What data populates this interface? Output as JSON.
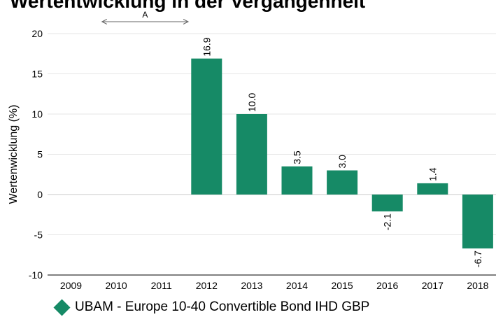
{
  "page": {
    "title": "Wertentwicklung in der Vergangenheit"
  },
  "chart_data": {
    "type": "bar",
    "title": "Wertentwicklung in der Vergangenheit",
    "ylabel": "Wertenwicklung (%)",
    "xlabel": "",
    "categories": [
      "2009",
      "2010",
      "2011",
      "2012",
      "2013",
      "2014",
      "2015",
      "2016",
      "2017",
      "2018"
    ],
    "series": [
      {
        "name": "UBAM - Europe 10-40 Convertible Bond IHD GBP",
        "values": [
          null,
          null,
          null,
          16.9,
          10.0,
          3.5,
          3.0,
          -2.1,
          1.4,
          -6.7
        ],
        "labels": [
          "",
          "",
          "",
          "16.9",
          "10.0",
          "3.5",
          "3.0",
          "-2.1",
          "1.4",
          "-6.7"
        ],
        "color": "#168a66"
      }
    ],
    "ylim": [
      -10,
      20
    ],
    "yticks": [
      -10,
      -5,
      0,
      5,
      10,
      15,
      20
    ],
    "grid": true,
    "legend_position": "bottom-left",
    "annotation": {
      "label": "A",
      "from": "2010",
      "to": "2012"
    }
  }
}
